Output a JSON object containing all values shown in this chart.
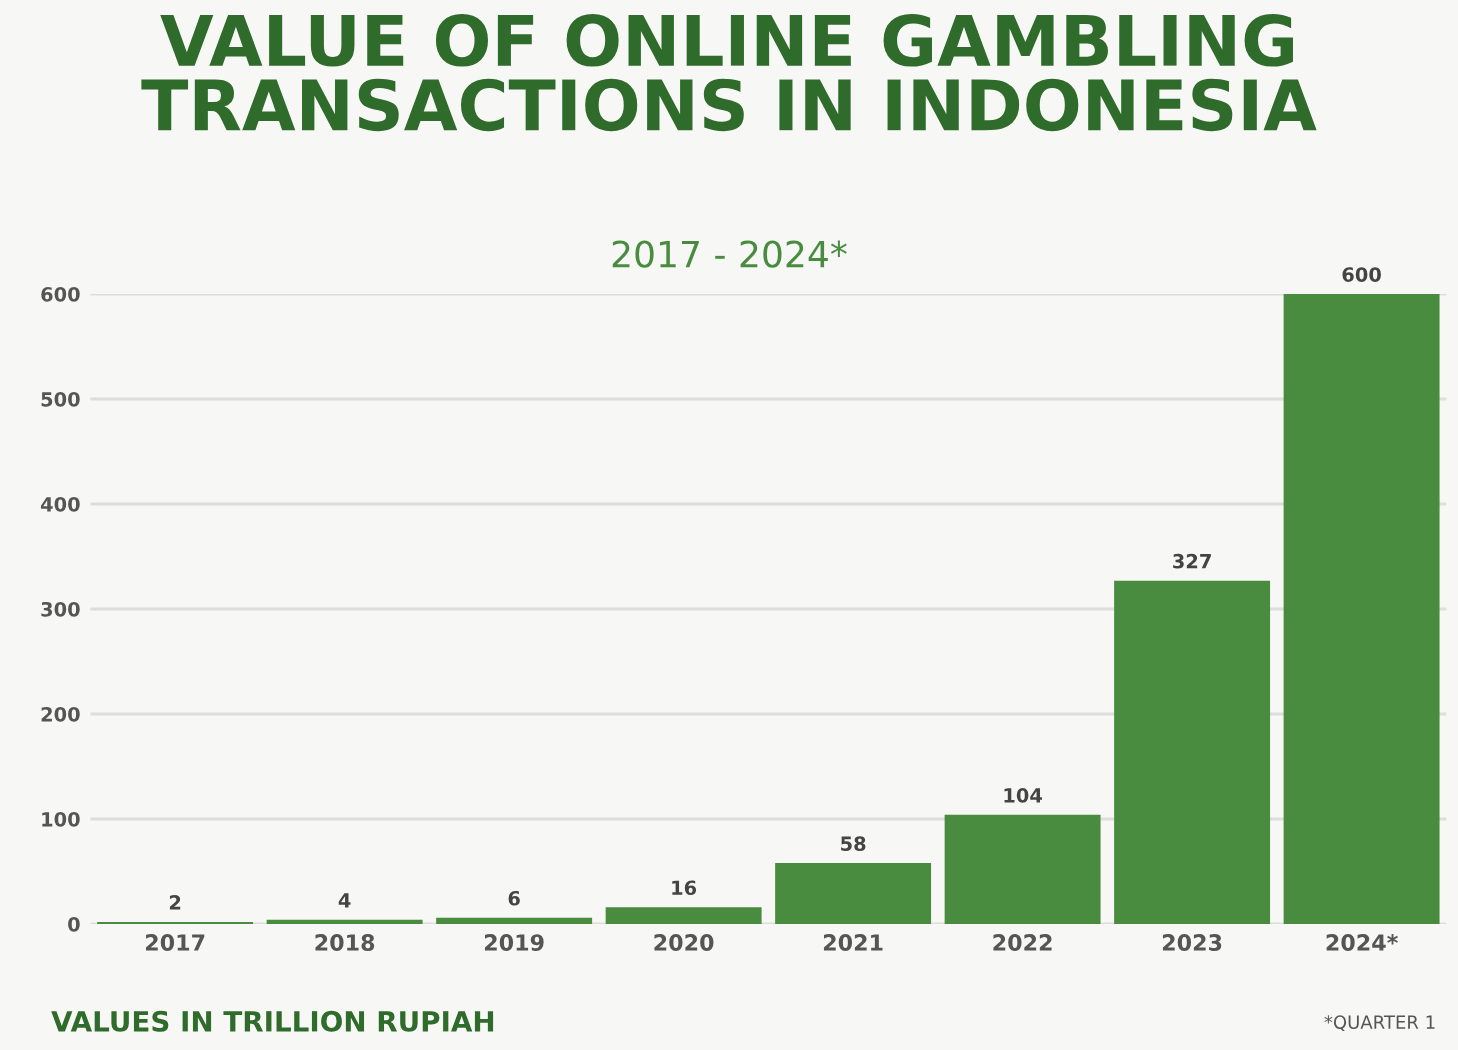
{
  "chart_data": {
    "type": "bar",
    "title": "VALUE OF ONLINE GAMBLING\nTRANSACTIONS IN INDONESIA",
    "subtitle": "2017 - 2024*",
    "categories": [
      "2017",
      "2018",
      "2019",
      "2020",
      "2021",
      "2022",
      "2023",
      "2024*"
    ],
    "values": [
      2,
      4,
      6,
      16,
      58,
      104,
      327,
      600
    ],
    "color": "#4a8c3f",
    "ylim": [
      0,
      600
    ],
    "yticks": [
      0,
      100,
      200,
      300,
      400,
      500,
      600
    ],
    "grid": "y",
    "data_labels": true,
    "annotations": [
      "VALUES IN TRILLION RUPIAH",
      "*QUARTER 1"
    ]
  }
}
